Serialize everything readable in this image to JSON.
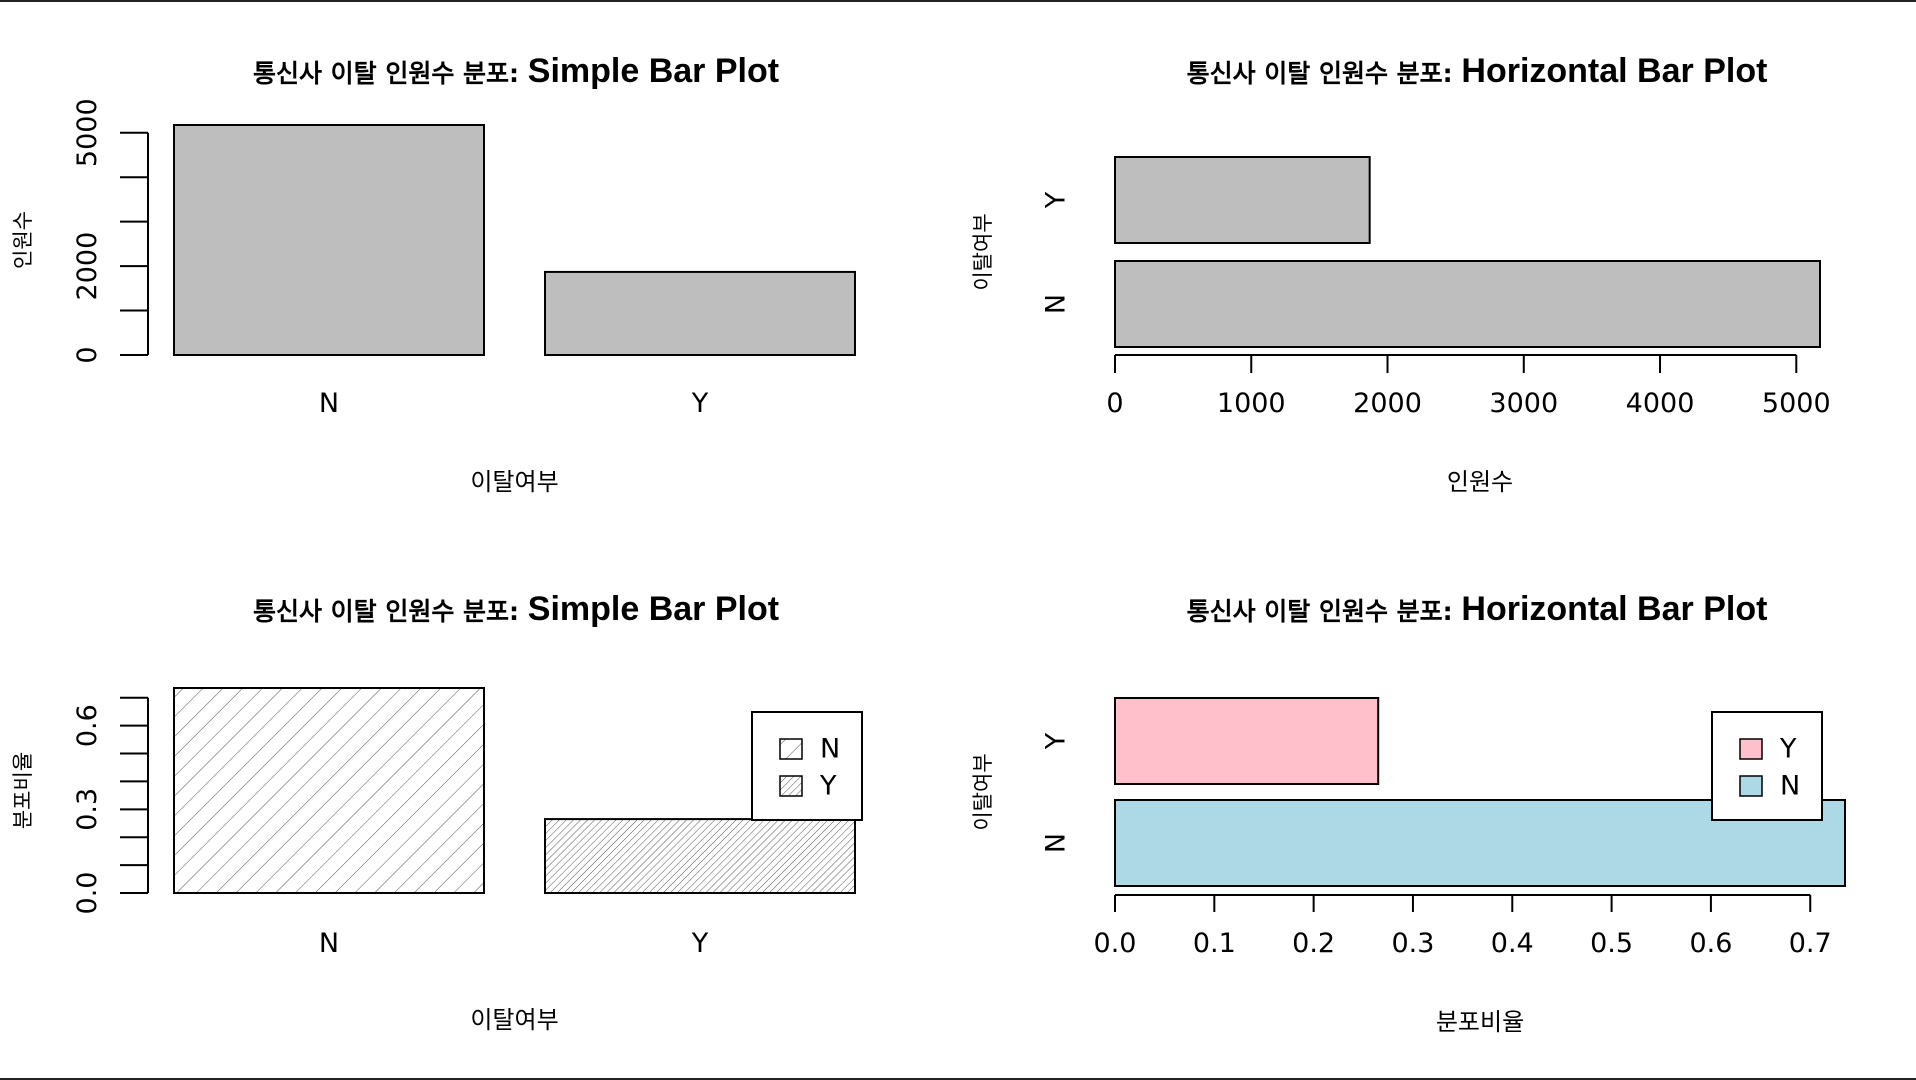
{
  "chart_data": [
    {
      "type": "bar",
      "orientation": "vertical",
      "title": {
        "prefix": "통신사 이탈 인원수 분포",
        "suffix": "Simple Bar Plot"
      },
      "xlabel": "이탈여부",
      "ylabel": "인원수",
      "categories": [
        "N",
        "Y"
      ],
      "values": [
        5174,
        1869
      ],
      "ylim": [
        0,
        5174
      ],
      "yticks": [
        0,
        2000,
        5000
      ],
      "yticks_minor": [
        0,
        1000,
        2000,
        3000,
        4000,
        5000
      ],
      "colors": [
        "#bebebe",
        "#bebebe"
      ],
      "pattern": "none",
      "grid": false
    },
    {
      "type": "bar",
      "orientation": "horizontal",
      "title": {
        "prefix": "통신사 이탈 인원수 분포",
        "suffix": "Horizontal Bar Plot"
      },
      "xlabel": "인원수",
      "ylabel": "이탈여부",
      "categories": [
        "N",
        "Y"
      ],
      "values": [
        5174,
        1869
      ],
      "xlim": [
        0,
        5174
      ],
      "xticks": [
        0,
        1000,
        2000,
        3000,
        4000,
        5000
      ],
      "colors": [
        "#bebebe",
        "#bebebe"
      ],
      "pattern": "none",
      "grid": false
    },
    {
      "type": "bar",
      "orientation": "vertical",
      "title": {
        "prefix": "통신사 이탈 인원수 분포",
        "suffix": "Simple Bar Plot"
      },
      "xlabel": "이탈여부",
      "ylabel": "분포비율",
      "categories": [
        "N",
        "Y"
      ],
      "values": [
        0.735,
        0.265
      ],
      "ylim": [
        0,
        0.735
      ],
      "yticks": [
        0.0,
        0.3,
        0.6
      ],
      "yticks_minor": [
        0.0,
        0.1,
        0.2,
        0.3,
        0.4,
        0.5,
        0.6,
        0.7
      ],
      "tick_format": "0.0",
      "colors": [
        "#ffffff",
        "#ffffff"
      ],
      "pattern": "hatch",
      "grid": false,
      "legend": {
        "placement": "top-right",
        "entries": [
          "N",
          "Y"
        ]
      }
    },
    {
      "type": "bar",
      "orientation": "horizontal",
      "title": {
        "prefix": "통신사 이탈 인원수 분포",
        "suffix": "Horizontal Bar Plot"
      },
      "xlabel": "분포비율",
      "ylabel": "이탈여부",
      "categories": [
        "N",
        "Y"
      ],
      "values": [
        0.735,
        0.265
      ],
      "xlim": [
        0,
        0.735
      ],
      "xticks": [
        0.0,
        0.1,
        0.2,
        0.3,
        0.4,
        0.5,
        0.6,
        0.7
      ],
      "tick_format": "0.0",
      "colors": [
        "#add8e6",
        "#ffc0cb"
      ],
      "pattern": "none",
      "grid": false,
      "legend": {
        "placement": "top-right",
        "entries": [
          "Y",
          "N"
        ],
        "entry_colors": [
          "#ffc0cb",
          "#add8e6"
        ]
      }
    }
  ]
}
